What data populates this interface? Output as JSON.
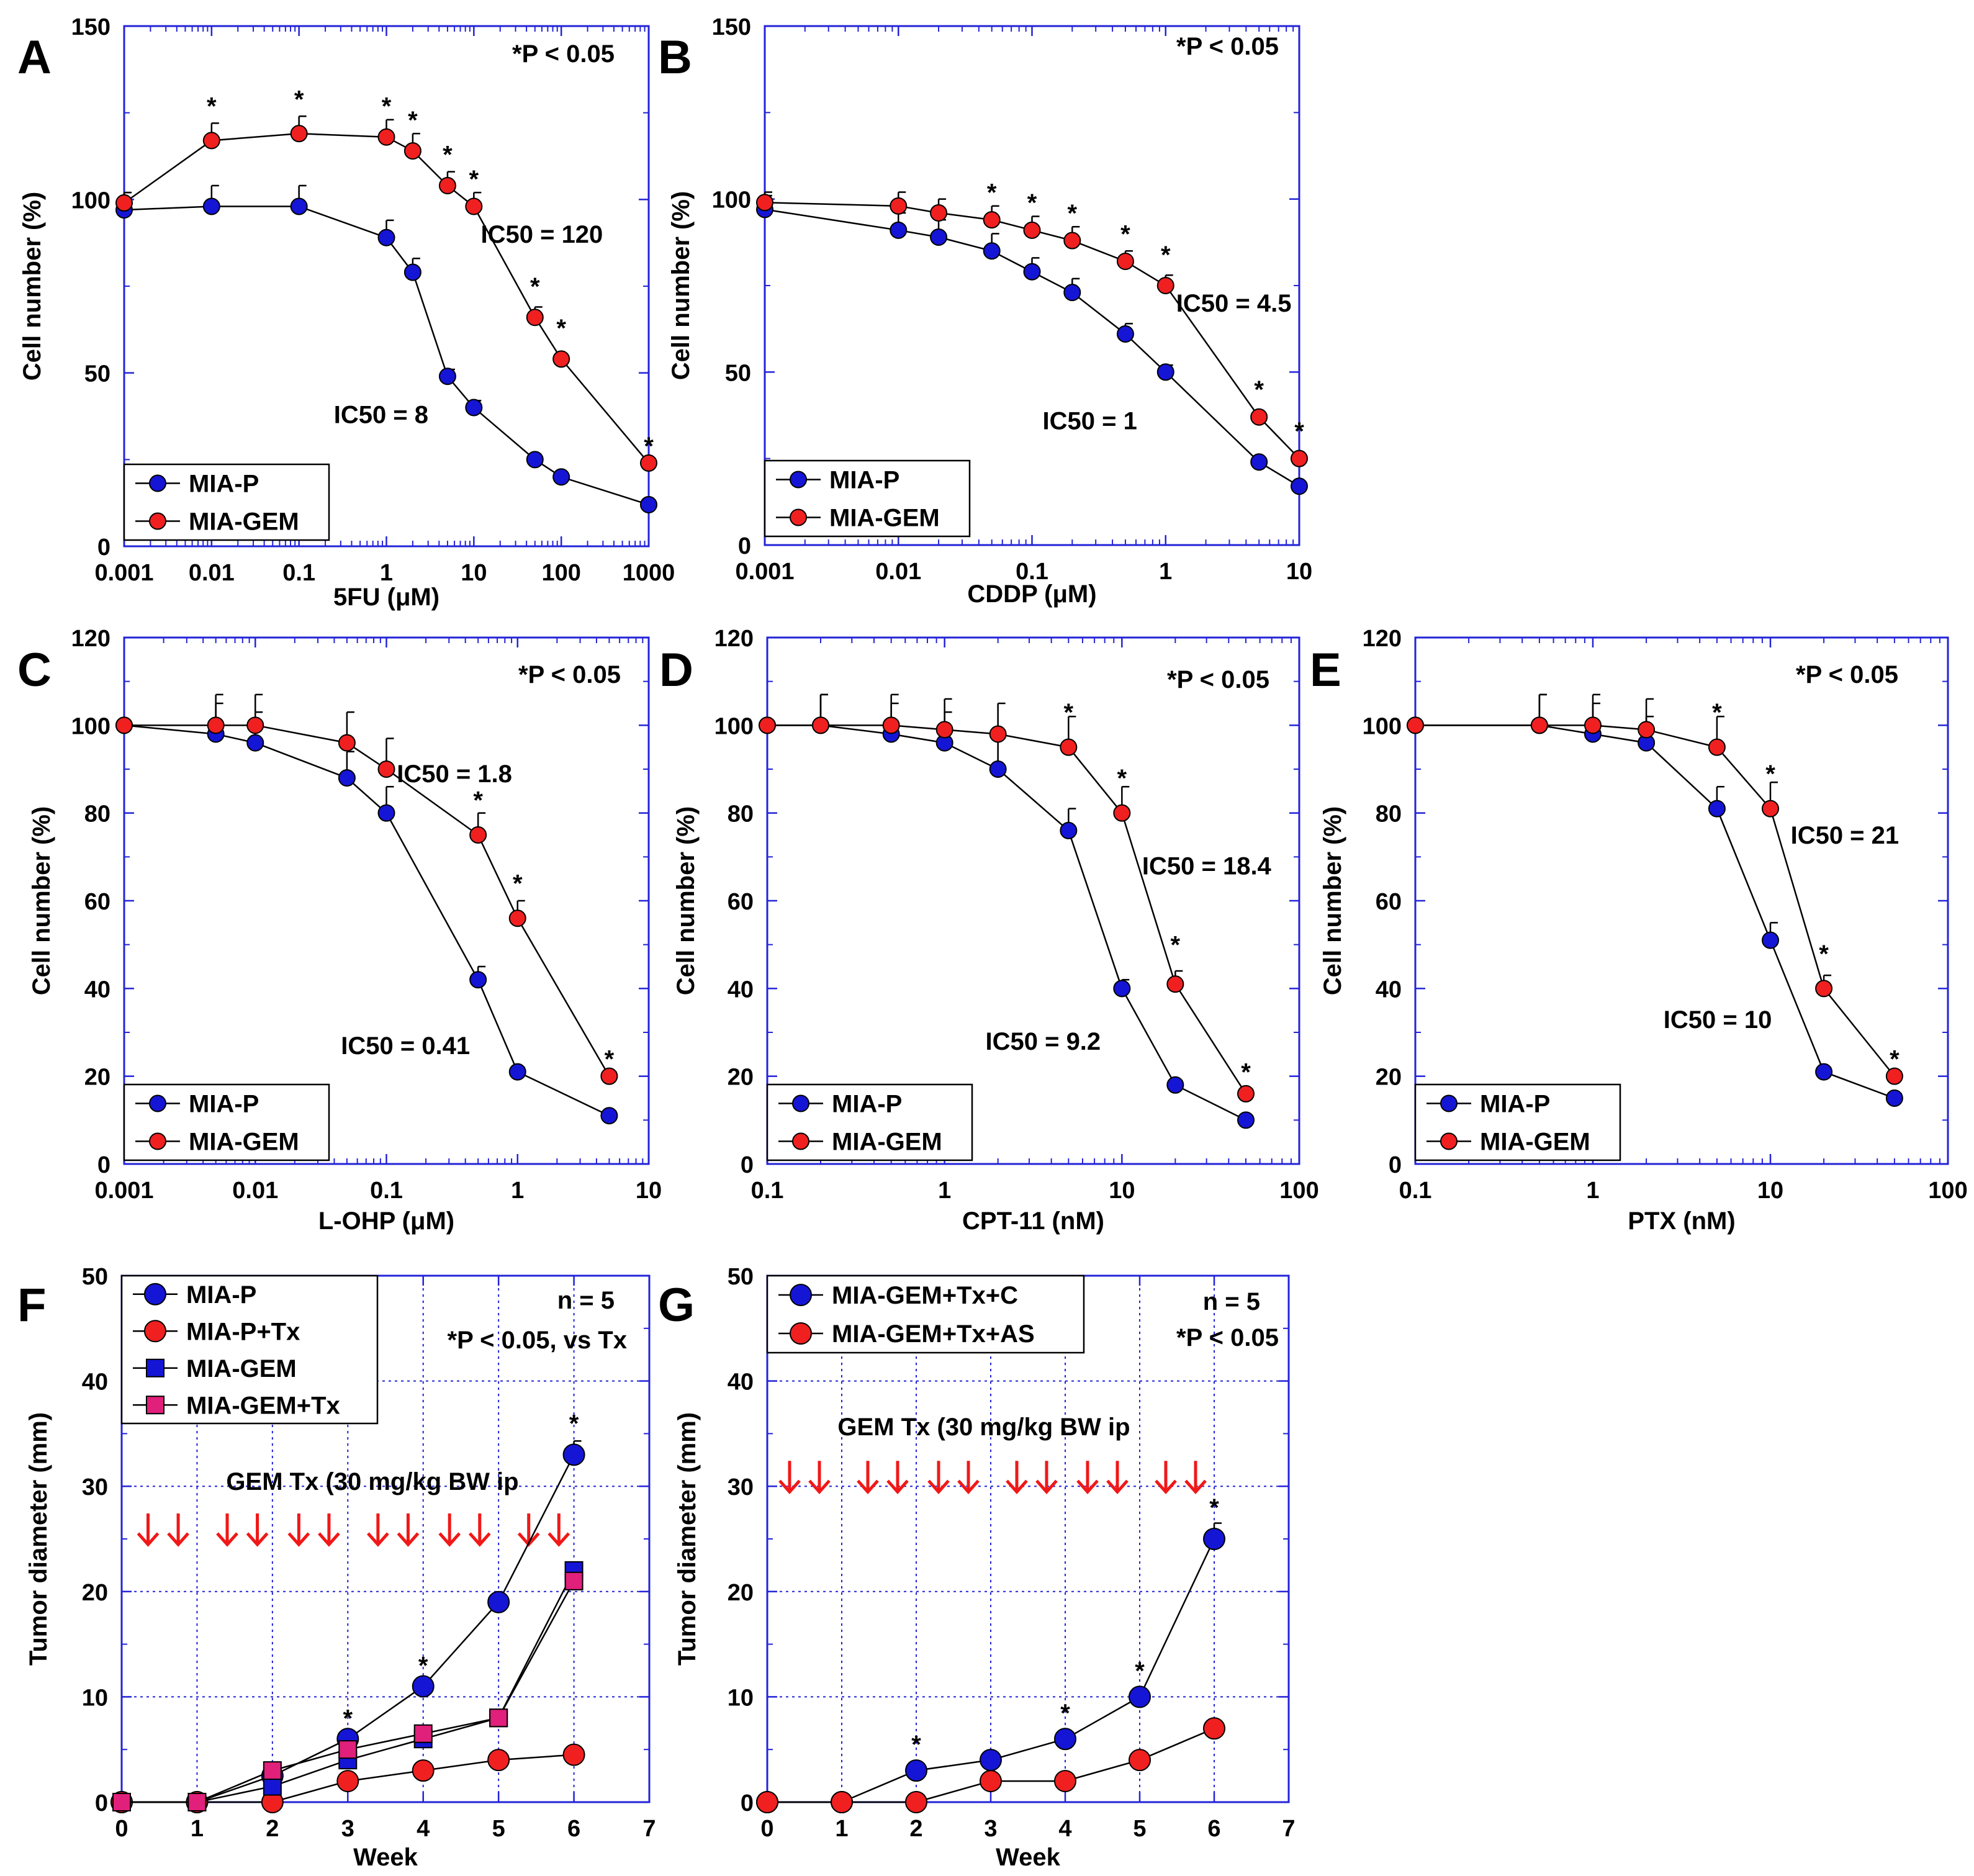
{
  "colors": {
    "axis": "#2323d8",
    "grid": "#2323d8",
    "blue_series": "#1515d6",
    "red_series": "#f02020",
    "pink_series": "#e0207a",
    "arrow": "#f01818"
  },
  "chart_data": [
    {
      "id": "A",
      "type": "scatter",
      "panel_label": "A",
      "xscale": "log",
      "xlim": [
        0.001,
        1000
      ],
      "ylim": [
        0,
        150
      ],
      "xticks": [
        0.001,
        0.01,
        0.1,
        1,
        10,
        100,
        1000
      ],
      "xticklabels": [
        "0.001",
        "0.01",
        "0.1",
        "1",
        "10",
        "100",
        "1000"
      ],
      "yticks": [
        0,
        50,
        100,
        150
      ],
      "yticklabels": [
        "0",
        "50",
        "100",
        "150"
      ],
      "xlabel": "5FU (μM)",
      "ylabel": "Cell number (%)",
      "pvalue": "*P < 0.05",
      "series": [
        {
          "name": "MIA-P",
          "color": "blue",
          "marker": "circle",
          "x": [
            0.001,
            0.01,
            0.1,
            1,
            2,
            5,
            10,
            50,
            100,
            1000
          ],
          "y": [
            97,
            98,
            98,
            89,
            79,
            49,
            40,
            25,
            20,
            12
          ],
          "err": [
            5,
            6,
            6,
            5,
            4,
            2,
            2,
            1,
            1,
            1
          ]
        },
        {
          "name": "MIA-GEM",
          "color": "red",
          "marker": "circle",
          "x": [
            0.001,
            0.01,
            0.1,
            1,
            2,
            5,
            10,
            50,
            100,
            1000
          ],
          "y": [
            99,
            117,
            119,
            118,
            114,
            104,
            98,
            66,
            54,
            24
          ],
          "err": [
            3,
            5,
            5,
            5,
            5,
            4,
            4,
            3,
            1,
            1
          ]
        }
      ],
      "stars": [
        {
          "x": 0.01,
          "y": 127
        },
        {
          "x": 0.1,
          "y": 129
        },
        {
          "x": 1,
          "y": 127
        },
        {
          "x": 2,
          "y": 123
        },
        {
          "x": 5,
          "y": 113
        },
        {
          "x": 10,
          "y": 106
        },
        {
          "x": 50,
          "y": 75
        },
        {
          "x": 100,
          "y": 63
        },
        {
          "x": 1000,
          "y": 29
        }
      ],
      "annotations": [
        {
          "text": "IC50 = 120",
          "x": 12,
          "y": 90
        },
        {
          "text": "IC50 = 8",
          "x": 0.25,
          "y": 38
        }
      ],
      "legend": [
        "MIA-P",
        "MIA-GEM"
      ]
    },
    {
      "id": "B",
      "type": "scatter",
      "panel_label": "B",
      "xscale": "log",
      "xlim": [
        0.001,
        10
      ],
      "ylim": [
        0,
        150
      ],
      "xticks": [
        0.001,
        0.01,
        0.1,
        1,
        10
      ],
      "xticklabels": [
        "0.001",
        "0.01",
        "0.1",
        "1",
        "10"
      ],
      "yticks": [
        0,
        50,
        100,
        150
      ],
      "yticklabels": [
        "0",
        "50",
        "100",
        "150"
      ],
      "xlabel": "CDDP (μM)",
      "ylabel": "Cell number (%)",
      "pvalue": "*P < 0.05",
      "series": [
        {
          "name": "MIA-P",
          "color": "blue",
          "marker": "circle",
          "x": [
            0.001,
            0.01,
            0.02,
            0.05,
            0.1,
            0.2,
            0.5,
            1,
            5,
            10
          ],
          "y": [
            97,
            91,
            89,
            85,
            79,
            73,
            61,
            50,
            24,
            17
          ],
          "err": [
            4,
            5,
            5,
            5,
            4,
            4,
            3,
            2,
            1,
            1
          ]
        },
        {
          "name": "MIA-GEM",
          "color": "red",
          "marker": "circle",
          "x": [
            0.001,
            0.01,
            0.02,
            0.05,
            0.1,
            0.2,
            0.5,
            1,
            5,
            10
          ],
          "y": [
            99,
            98,
            96,
            94,
            91,
            88,
            82,
            75,
            37,
            25
          ],
          "err": [
            3,
            4,
            4,
            4,
            4,
            4,
            3,
            3,
            1,
            1
          ]
        }
      ],
      "stars": [
        {
          "x": 0.05,
          "y": 102
        },
        {
          "x": 0.1,
          "y": 99
        },
        {
          "x": 0.2,
          "y": 96
        },
        {
          "x": 0.5,
          "y": 90
        },
        {
          "x": 1,
          "y": 84
        },
        {
          "x": 5,
          "y": 45
        },
        {
          "x": 10,
          "y": 33
        }
      ],
      "annotations": [
        {
          "text": "IC50 = 4.5",
          "x": 1.2,
          "y": 70
        },
        {
          "text": "IC50 = 1",
          "x": 0.12,
          "y": 36
        }
      ],
      "legend": [
        "MIA-P",
        "MIA-GEM"
      ]
    },
    {
      "id": "C",
      "type": "scatter",
      "panel_label": "C",
      "xscale": "log",
      "xlim": [
        0.001,
        10
      ],
      "ylim": [
        0,
        120
      ],
      "xticks": [
        0.001,
        0.01,
        0.1,
        1,
        10
      ],
      "xticklabels": [
        "0.001",
        "0.01",
        "0.1",
        "1",
        "10"
      ],
      "yticks": [
        0,
        20,
        40,
        60,
        80,
        100,
        120
      ],
      "yticklabels": [
        "0",
        "20",
        "40",
        "60",
        "80",
        "100",
        "120"
      ],
      "xlabel": "L-OHP (μM)",
      "ylabel": "Cell number (%)",
      "pvalue": "*P < 0.05",
      "series": [
        {
          "name": "MIA-P",
          "color": "blue",
          "marker": "circle",
          "x": [
            0.001,
            0.005,
            0.01,
            0.05,
            0.1,
            0.5,
            1,
            5
          ],
          "y": [
            100,
            98,
            96,
            88,
            80,
            42,
            21,
            11
          ],
          "err": [
            0,
            7,
            7,
            6,
            6,
            3,
            1,
            1
          ]
        },
        {
          "name": "MIA-GEM",
          "color": "red",
          "marker": "circle",
          "x": [
            0.001,
            0.005,
            0.01,
            0.05,
            0.1,
            0.5,
            1,
            5
          ],
          "y": [
            100,
            100,
            100,
            96,
            90,
            75,
            56,
            20
          ],
          "err": [
            0,
            7,
            7,
            7,
            7,
            5,
            4,
            1
          ]
        }
      ],
      "stars": [
        {
          "x": 0.5,
          "y": 83
        },
        {
          "x": 1,
          "y": 64
        },
        {
          "x": 5,
          "y": 24
        }
      ],
      "annotations": [
        {
          "text": "IC50 = 1.8",
          "x": 0.12,
          "y": 89
        },
        {
          "text": "IC50 = 0.41",
          "x": 0.045,
          "y": 27
        }
      ],
      "legend": [
        "MIA-P",
        "MIA-GEM"
      ]
    },
    {
      "id": "D",
      "type": "scatter",
      "panel_label": "D",
      "xscale": "log",
      "xlim": [
        0.1,
        100
      ],
      "ylim": [
        0,
        120
      ],
      "xticks": [
        0.1,
        1,
        10,
        100
      ],
      "xticklabels": [
        "0.1",
        "1",
        "10",
        "100"
      ],
      "yticks": [
        0,
        20,
        40,
        60,
        80,
        100,
        120
      ],
      "yticklabels": [
        "0",
        "20",
        "40",
        "60",
        "80",
        "100",
        "120"
      ],
      "xlabel": "CPT-11 (nM)",
      "ylabel": "Cell number (%)",
      "pvalue": "*P < 0.05",
      "series": [
        {
          "name": "MIA-P",
          "color": "blue",
          "marker": "circle",
          "x": [
            0.1,
            0.2,
            0.5,
            1,
            2,
            5,
            10,
            20,
            50
          ],
          "y": [
            100,
            100,
            98,
            96,
            90,
            76,
            40,
            18,
            10
          ],
          "err": [
            0,
            7,
            7,
            7,
            7,
            5,
            2,
            1,
            1
          ]
        },
        {
          "name": "MIA-GEM",
          "color": "red",
          "marker": "circle",
          "x": [
            0.1,
            0.2,
            0.5,
            1,
            2,
            5,
            10,
            20,
            50
          ],
          "y": [
            100,
            100,
            100,
            99,
            98,
            95,
            80,
            41,
            16
          ],
          "err": [
            0,
            7,
            7,
            7,
            7,
            7,
            6,
            3,
            1
          ]
        }
      ],
      "stars": [
        {
          "x": 5,
          "y": 103
        },
        {
          "x": 10,
          "y": 88
        },
        {
          "x": 20,
          "y": 50
        },
        {
          "x": 50,
          "y": 21
        }
      ],
      "annotations": [
        {
          "text": "IC50 = 18.4",
          "x": 13,
          "y": 68
        },
        {
          "text": "IC50 = 9.2",
          "x": 1.7,
          "y": 28
        }
      ],
      "legend": [
        "MIA-P",
        "MIA-GEM"
      ]
    },
    {
      "id": "E",
      "type": "scatter",
      "panel_label": "E",
      "xscale": "log",
      "xlim": [
        0.1,
        100
      ],
      "ylim": [
        0,
        120
      ],
      "xticks": [
        0.1,
        1,
        10,
        100
      ],
      "xticklabels": [
        "0.1",
        "1",
        "10",
        "100"
      ],
      "yticks": [
        0,
        20,
        40,
        60,
        80,
        100,
        120
      ],
      "yticklabels": [
        "0",
        "20",
        "40",
        "60",
        "80",
        "100",
        "120"
      ],
      "xlabel": "PTX (nM)",
      "ylabel": "Cell number (%)",
      "pvalue": "*P < 0.05",
      "series": [
        {
          "name": "MIA-P",
          "color": "blue",
          "marker": "circle",
          "x": [
            0.1,
            0.5,
            1,
            2,
            5,
            10,
            20,
            50
          ],
          "y": [
            100,
            100,
            98,
            96,
            81,
            51,
            21,
            15
          ],
          "err": [
            0,
            7,
            7,
            6,
            5,
            4,
            1,
            1
          ]
        },
        {
          "name": "MIA-GEM",
          "color": "red",
          "marker": "circle",
          "x": [
            0.1,
            0.5,
            1,
            2,
            5,
            10,
            20,
            50
          ],
          "y": [
            100,
            100,
            100,
            99,
            95,
            81,
            40,
            20
          ],
          "err": [
            0,
            7,
            7,
            7,
            7,
            6,
            3,
            1
          ]
        }
      ],
      "stars": [
        {
          "x": 5,
          "y": 103
        },
        {
          "x": 10,
          "y": 89
        },
        {
          "x": 20,
          "y": 48
        },
        {
          "x": 50,
          "y": 24
        }
      ],
      "annotations": [
        {
          "text": "IC50 = 21",
          "x": 13,
          "y": 75
        },
        {
          "text": "IC50 = 10",
          "x": 2.5,
          "y": 33
        }
      ],
      "legend": [
        "MIA-P",
        "MIA-GEM"
      ]
    },
    {
      "id": "F",
      "type": "line",
      "panel_label": "F",
      "xscale": "linear",
      "xlim": [
        0,
        7
      ],
      "ylim": [
        0,
        50
      ],
      "xticks": [
        0,
        1,
        2,
        3,
        4,
        5,
        6,
        7
      ],
      "xticklabels": [
        "0",
        "1",
        "2",
        "3",
        "4",
        "5",
        "6",
        "7"
      ],
      "yticks": [
        0,
        10,
        20,
        30,
        40,
        50
      ],
      "yticklabels": [
        "0",
        "10",
        "20",
        "30",
        "40",
        "50"
      ],
      "xlabel": "Week",
      "ylabel": "Tumor diameter (mm)",
      "grid": true,
      "pvalue": "*P < 0.05, vs Tx",
      "n_label": "n = 5",
      "treatment_label": "GEM Tx (30 mg/kg BW ip",
      "arrow_x": [
        0.35,
        0.75,
        1.4,
        1.8,
        2.35,
        2.75,
        3.4,
        3.8,
        4.35,
        4.75,
        5.4,
        5.8
      ],
      "arrow_y": 26,
      "series": [
        {
          "name": "MIA-P",
          "color": "blue",
          "marker": "circle",
          "x": [
            0,
            1,
            2,
            3,
            4,
            5,
            6
          ],
          "y": [
            0,
            0,
            2.5,
            6,
            11,
            19,
            33
          ],
          "err": [
            0,
            0,
            0.5,
            0.5,
            0.5,
            0.5,
            1.3
          ]
        },
        {
          "name": "MIA-P+Tx",
          "color": "red",
          "marker": "circle",
          "x": [
            0,
            1,
            2,
            3,
            4,
            5,
            6
          ],
          "y": [
            0,
            0,
            0,
            2,
            3,
            4,
            4.5
          ],
          "err": [
            0,
            0,
            0,
            0,
            0,
            0,
            0
          ]
        },
        {
          "name": "MIA-GEM",
          "color": "blue",
          "marker": "square",
          "x": [
            0,
            1,
            2,
            3,
            4,
            5,
            6
          ],
          "y": [
            0,
            0,
            1.5,
            4,
            6,
            8,
            22
          ],
          "err": [
            0,
            0,
            0,
            0,
            0,
            0,
            0.5
          ]
        },
        {
          "name": "MIA-GEM+Tx",
          "color": "pink",
          "marker": "square",
          "x": [
            0,
            1,
            2,
            3,
            4,
            5,
            6
          ],
          "y": [
            0,
            0,
            3,
            5,
            6.5,
            8,
            21
          ],
          "err": [
            0,
            0,
            0,
            0,
            0,
            0,
            0.5
          ]
        }
      ],
      "stars": [
        {
          "x": 3,
          "y": 8
        },
        {
          "x": 4,
          "y": 13
        },
        {
          "x": 6,
          "y": 36
        }
      ],
      "legend": [
        "MIA-P",
        "MIA-P+Tx",
        "MIA-GEM",
        "MIA-GEM+Tx"
      ]
    },
    {
      "id": "G",
      "type": "line",
      "panel_label": "G",
      "xscale": "linear",
      "xlim": [
        0,
        7
      ],
      "ylim": [
        0,
        50
      ],
      "xticks": [
        0,
        1,
        2,
        3,
        4,
        5,
        6,
        7
      ],
      "xticklabels": [
        "0",
        "1",
        "2",
        "3",
        "4",
        "5",
        "6",
        "7"
      ],
      "yticks": [
        0,
        10,
        20,
        30,
        40,
        50
      ],
      "yticklabels": [
        "0",
        "10",
        "20",
        "30",
        "40",
        "50"
      ],
      "xlabel": "Week",
      "ylabel": "Tumor diameter (mm)",
      "grid": true,
      "pvalue": "*P < 0.05",
      "n_label": "n = 5",
      "treatment_label": "GEM Tx (30 mg/kg BW ip",
      "arrow_x": [
        0.3,
        0.7,
        1.35,
        1.75,
        2.3,
        2.7,
        3.35,
        3.75,
        4.3,
        4.7,
        5.35,
        5.75
      ],
      "arrow_y": 31,
      "series": [
        {
          "name": "MIA-GEM+Tx+C",
          "color": "blue",
          "marker": "circle",
          "x": [
            0,
            1,
            2,
            3,
            4,
            5,
            6
          ],
          "y": [
            0,
            0,
            3,
            4,
            6,
            10,
            25
          ],
          "err": [
            0,
            0,
            0.5,
            0.3,
            0.5,
            0.3,
            1.5
          ]
        },
        {
          "name": "MIA-GEM+Tx+AS",
          "color": "red",
          "marker": "circle",
          "x": [
            0,
            1,
            2,
            3,
            4,
            5,
            6
          ],
          "y": [
            0,
            0,
            0,
            2,
            2,
            4,
            7
          ],
          "err": [
            0,
            0,
            0,
            0,
            0,
            0,
            0
          ]
        }
      ],
      "stars": [
        {
          "x": 2,
          "y": 5.5
        },
        {
          "x": 4,
          "y": 8.5
        },
        {
          "x": 5,
          "y": 12.5
        },
        {
          "x": 6,
          "y": 28
        }
      ],
      "legend": [
        "MIA-GEM+Tx+C",
        "MIA-GEM+Tx+AS"
      ]
    }
  ]
}
